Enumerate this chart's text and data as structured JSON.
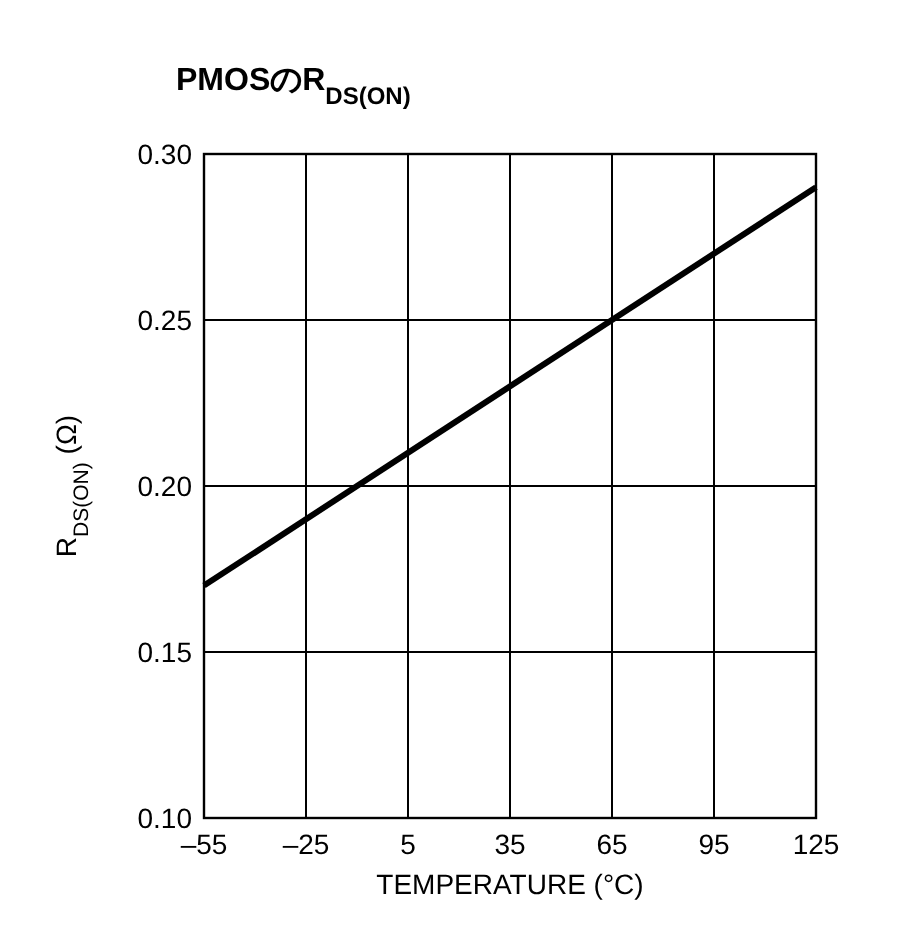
{
  "chart_data": {
    "type": "line",
    "title": "PMOSのR$_{DS(ON)}$",
    "xlabel": "TEMPERATURE (°C)",
    "ylabel": "R$_{DS(ON)}$ (Ω)",
    "x": [
      -55,
      125
    ],
    "series": [
      {
        "color": "#000000",
        "values": [
          0.17,
          0.29
        ]
      }
    ],
    "xlim": [
      -55,
      125
    ],
    "xticks": [
      {
        "value": -55,
        "label": "–55"
      },
      {
        "value": -25,
        "label": "–25"
      },
      5,
      35,
      65,
      95,
      125
    ],
    "ylim": [
      0.1,
      0.3
    ],
    "yticks": [
      {
        "value": 0.1,
        "label": "0.10"
      },
      {
        "value": 0.15,
        "label": "0.15"
      },
      {
        "value": 0.2,
        "label": "0.20"
      },
      {
        "value": 0.25,
        "label": "0.25"
      },
      {
        "value": 0.3,
        "label": "0.30"
      }
    ],
    "grid": true,
    "marker": "none",
    "line_style": "solid"
  }
}
